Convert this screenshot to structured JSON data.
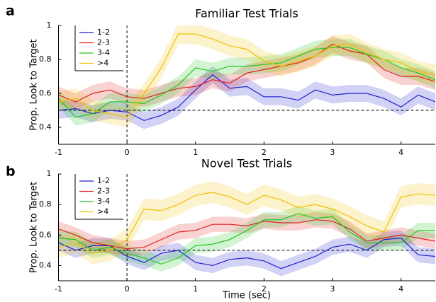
{
  "chart_data": [
    {
      "type": "line",
      "panel_label": "a",
      "title": "Familiar Test Trials",
      "ylabel": "Prop. Look to Target",
      "x": [
        -1,
        -0.75,
        -0.5,
        -0.25,
        0,
        0.25,
        0.5,
        0.75,
        1,
        1.25,
        1.5,
        1.75,
        2,
        2.25,
        2.5,
        2.75,
        3,
        3.25,
        3.5,
        3.75,
        4,
        4.25,
        4.5
      ],
      "xlim": [
        -1,
        4.5
      ],
      "ylim": [
        0.3,
        1
      ],
      "xticks": [
        -1,
        0,
        1,
        2,
        3,
        4
      ],
      "yticks": [
        0.4,
        0.6,
        0.8,
        1
      ],
      "hline": 0.5,
      "vline": 0,
      "legend": "upper left",
      "series": [
        {
          "name": "1-2",
          "color": "#2020d0",
          "error": 0.05,
          "values": [
            0.5,
            0.51,
            0.48,
            0.5,
            0.49,
            0.44,
            0.47,
            0.52,
            0.62,
            0.71,
            0.63,
            0.64,
            0.58,
            0.58,
            0.56,
            0.62,
            0.59,
            0.6,
            0.6,
            0.57,
            0.52,
            0.59,
            0.55
          ]
        },
        {
          "name": "2-3",
          "color": "#e02020",
          "error": 0.05,
          "values": [
            0.59,
            0.55,
            0.6,
            0.62,
            0.58,
            0.57,
            0.6,
            0.63,
            0.64,
            0.68,
            0.66,
            0.72,
            0.74,
            0.76,
            0.78,
            0.82,
            0.89,
            0.85,
            0.83,
            0.74,
            0.7,
            0.7,
            0.67
          ]
        },
        {
          "name": "3-4",
          "color": "#20c820",
          "error": 0.05,
          "values": [
            0.57,
            0.46,
            0.48,
            0.55,
            0.55,
            0.54,
            0.59,
            0.65,
            0.75,
            0.73,
            0.76,
            0.76,
            0.77,
            0.78,
            0.82,
            0.86,
            0.87,
            0.87,
            0.83,
            0.8,
            0.75,
            0.72,
            0.68
          ]
        },
        {
          "name": ">4",
          "color": "#f0c000",
          "error": 0.06,
          "values": [
            0.55,
            0.57,
            0.5,
            0.48,
            0.46,
            0.6,
            0.75,
            0.95,
            0.95,
            0.92,
            0.88,
            0.86,
            0.79,
            0.76,
            0.79,
            0.82,
            0.88,
            0.89,
            0.84,
            0.8,
            0.78,
            0.73,
            0.71
          ]
        }
      ]
    },
    {
      "type": "line",
      "panel_label": "b",
      "title": "Novel Test Trials",
      "ylabel": "Prop. Look to Target",
      "xlabel": "Time (sec)",
      "x": [
        -1,
        -0.75,
        -0.5,
        -0.25,
        0,
        0.25,
        0.5,
        0.75,
        1,
        1.25,
        1.5,
        1.75,
        2,
        2.25,
        2.5,
        2.75,
        3,
        3.25,
        3.5,
        3.75,
        4,
        4.25,
        4.5
      ],
      "xlim": [
        -1,
        4.5
      ],
      "ylim": [
        0.3,
        1
      ],
      "xticks": [
        -1,
        0,
        1,
        2,
        3,
        4
      ],
      "yticks": [
        0.4,
        0.6,
        0.8,
        1
      ],
      "hline": 0.5,
      "vline": 0,
      "legend": "upper left",
      "series": [
        {
          "name": "1-2",
          "color": "#2020d0",
          "error": 0.05,
          "values": [
            0.55,
            0.5,
            0.53,
            0.53,
            0.46,
            0.42,
            0.48,
            0.5,
            0.42,
            0.4,
            0.44,
            0.45,
            0.43,
            0.38,
            0.42,
            0.46,
            0.52,
            0.54,
            0.5,
            0.57,
            0.58,
            0.47,
            0.46
          ]
        },
        {
          "name": "2-3",
          "color": "#e02020",
          "error": 0.05,
          "values": [
            0.64,
            0.6,
            0.55,
            0.53,
            0.51,
            0.52,
            0.57,
            0.62,
            0.63,
            0.67,
            0.67,
            0.66,
            0.69,
            0.68,
            0.68,
            0.7,
            0.69,
            0.64,
            0.56,
            0.58,
            0.6,
            0.58,
            0.56
          ]
        },
        {
          "name": "3-4",
          "color": "#20c820",
          "error": 0.05,
          "values": [
            0.58,
            0.57,
            0.5,
            0.52,
            0.48,
            0.45,
            0.41,
            0.45,
            0.53,
            0.54,
            0.57,
            0.63,
            0.7,
            0.7,
            0.74,
            0.71,
            0.72,
            0.62,
            0.55,
            0.55,
            0.55,
            0.63,
            0.63
          ]
        },
        {
          "name": ">4",
          "color": "#f0c000",
          "error": 0.07,
          "values": [
            0.52,
            0.55,
            0.48,
            0.5,
            0.57,
            0.77,
            0.76,
            0.8,
            0.86,
            0.88,
            0.85,
            0.8,
            0.86,
            0.83,
            0.78,
            0.8,
            0.77,
            0.72,
            0.66,
            0.62,
            0.85,
            0.87,
            0.86
          ]
        }
      ]
    }
  ]
}
